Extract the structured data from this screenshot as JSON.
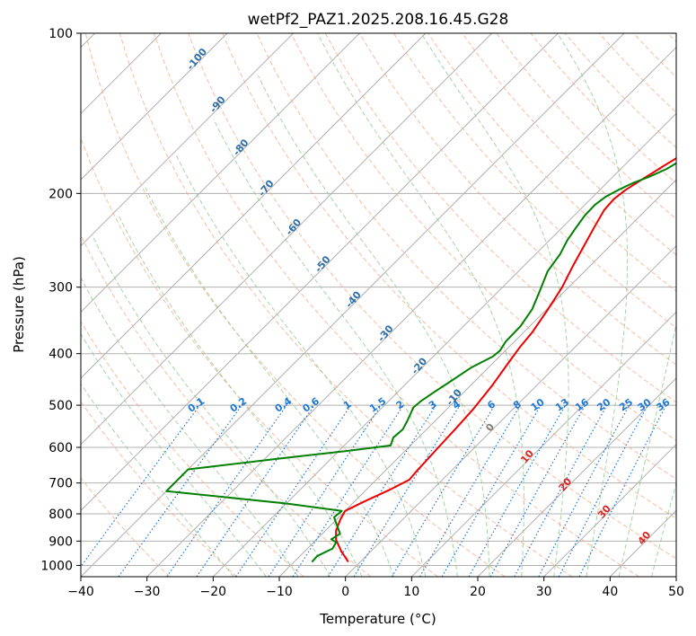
{
  "chart_data": {
    "type": "line",
    "subtype": "skew-t log-p diagram",
    "title": "wetPf2_PAZ1.2025.208.16.45.G28",
    "xlabel": "Temperature (°C)",
    "ylabel": "Pressure (hPa)",
    "xlim": [
      -40,
      50
    ],
    "ylim": [
      1050,
      100
    ],
    "y_scale": "log",
    "grid": true,
    "x_ticks": [
      -40,
      -30,
      -20,
      -10,
      0,
      10,
      20,
      30,
      40,
      50
    ],
    "y_ticks": [
      100,
      200,
      300,
      400,
      500,
      600,
      700,
      800,
      900,
      1000
    ],
    "x_tick_labels": [
      "−40",
      "−30",
      "−20",
      "−10",
      "0",
      "10",
      "20",
      "30",
      "40",
      "50"
    ],
    "y_tick_labels": [
      "100",
      "200",
      "300",
      "400",
      "500",
      "600",
      "700",
      "800",
      "900",
      "1000"
    ],
    "mixing_ratio_labels": [
      "0.1",
      "0.2",
      "0.4",
      "0.6",
      "1",
      "1.5",
      "2",
      "3",
      "4",
      "6",
      "8",
      "10",
      "13",
      "16",
      "20",
      "25",
      "30",
      "36"
    ],
    "upper_isotherm_labels": [
      "-100",
      "-90",
      "-80",
      "-70",
      "-60",
      "-50",
      "-40",
      "-30",
      "-20",
      "-10"
    ],
    "lower_isotherm_labels": [
      "0",
      "10",
      "20",
      "30",
      "40"
    ],
    "colors": {
      "temperature": "#ee0000",
      "dewpoint": "#008000",
      "dry_adiabat": "#f4a582",
      "moist_adiabat": "#8fc98f",
      "mixing_ratio": "#1f77d4",
      "isotherm_label_cold": "#2c6fa8",
      "isotherm_label_warm": "#d62728",
      "isotherm_label_zero": "#808080"
    },
    "series": [
      {
        "name": "",
        "role": "temperature",
        "points": [
          [
            -1.8,
            985
          ],
          [
            -4.5,
            940
          ],
          [
            -7.0,
            895
          ],
          [
            -8.4,
            860
          ],
          [
            -9.4,
            820
          ],
          [
            -10.0,
            790
          ],
          [
            -8.6,
            760
          ],
          [
            -6.4,
            720
          ],
          [
            -5.0,
            690
          ],
          [
            -5.2,
            665
          ],
          [
            -5.3,
            640
          ],
          [
            -5.5,
            600
          ],
          [
            -5.7,
            555
          ],
          [
            -6.0,
            510
          ],
          [
            -6.7,
            460
          ],
          [
            -7.6,
            420
          ],
          [
            -8.3,
            390
          ],
          [
            -8.7,
            365
          ],
          [
            -9.8,
            330
          ],
          [
            -11.0,
            300
          ],
          [
            -12.5,
            275
          ],
          [
            -14.0,
            250
          ],
          [
            -15.3,
            230
          ],
          [
            -16.3,
            215
          ],
          [
            -16.5,
            205
          ],
          [
            -16.1,
            197
          ],
          [
            -15.4,
            190
          ],
          [
            -14.6,
            183
          ],
          [
            -13.9,
            177
          ],
          [
            -13.0,
            170
          ],
          [
            -11.3,
            164
          ],
          [
            -9.2,
            158
          ],
          [
            -8.1,
            151
          ],
          [
            -7.2,
            144
          ],
          [
            -6.8,
            137
          ],
          [
            -7.6,
            130
          ],
          [
            -8.5,
            123
          ],
          [
            -8.1,
            116
          ],
          [
            -7.3,
            110
          ],
          [
            -6.2,
            104
          ],
          [
            -5.5,
            100
          ]
        ]
      },
      {
        "name": "",
        "role": "dewpoint",
        "points": [
          [
            -7.3,
            985
          ],
          [
            -7.4,
            960
          ],
          [
            -6.2,
            930
          ],
          [
            -6.6,
            905
          ],
          [
            -7.8,
            893
          ],
          [
            -7.3,
            872
          ],
          [
            -10.7,
            812
          ],
          [
            -10.5,
            790
          ],
          [
            -20.0,
            765
          ],
          [
            -40.0,
            725
          ],
          [
            -40.0,
            660
          ],
          [
            -28.0,
            630
          ],
          [
            -19.0,
            610
          ],
          [
            -13.0,
            595
          ],
          [
            -13.8,
            575
          ],
          [
            -13.6,
            555
          ],
          [
            -14.2,
            535
          ],
          [
            -15.3,
            505
          ],
          [
            -15.1,
            490
          ],
          [
            -14.4,
            470
          ],
          [
            -13.6,
            450
          ],
          [
            -12.6,
            425
          ],
          [
            -11.0,
            405
          ],
          [
            -10.8,
            395
          ],
          [
            -11.3,
            380
          ],
          [
            -11.4,
            355
          ],
          [
            -12.2,
            330
          ],
          [
            -13.8,
            305
          ],
          [
            -15.6,
            280
          ],
          [
            -16.3,
            260
          ],
          [
            -17.3,
            245
          ],
          [
            -17.9,
            232
          ],
          [
            -18.4,
            220
          ],
          [
            -18.5,
            210
          ],
          [
            -18.1,
            203
          ],
          [
            -17.2,
            197
          ],
          [
            -16.0,
            191
          ],
          [
            -14.5,
            186
          ],
          [
            -13.1,
            180
          ],
          [
            -12.4,
            175
          ],
          [
            -12.1,
            167
          ],
          [
            -11.3,
            159
          ],
          [
            -10.0,
            152
          ],
          [
            -9.3,
            143
          ],
          [
            -9.8,
            133
          ],
          [
            -9.8,
            124
          ],
          [
            -9.0,
            117
          ],
          [
            -7.6,
            110
          ],
          [
            -6.3,
            104
          ],
          [
            -5.5,
            100
          ]
        ]
      }
    ]
  }
}
